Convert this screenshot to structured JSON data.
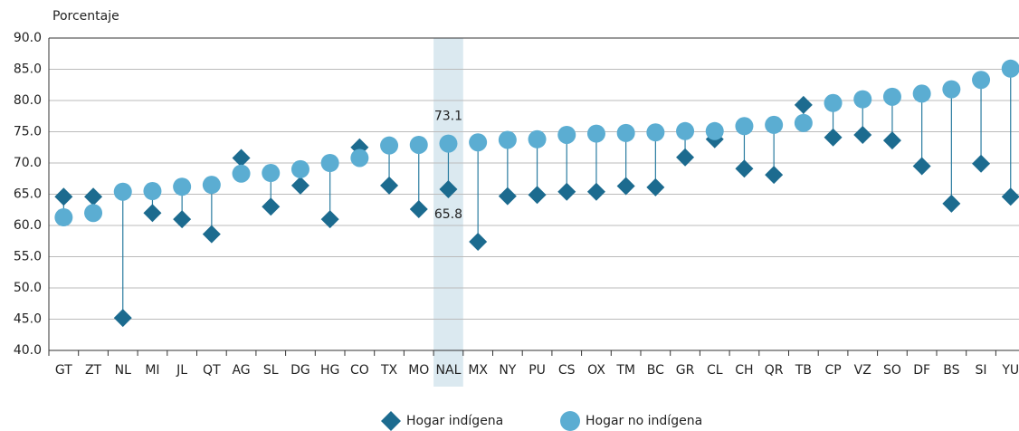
{
  "chart_data": {
    "type": "dumbbell",
    "y_label": "Porcentaje",
    "categories": [
      "GT",
      "ZT",
      "NL",
      "MI",
      "JL",
      "QT",
      "AG",
      "SL",
      "DG",
      "HG",
      "CO",
      "TX",
      "MO",
      "NAL",
      "MX",
      "NY",
      "PU",
      "CS",
      "OX",
      "TM",
      "BC",
      "GR",
      "CL",
      "CH",
      "QR",
      "TB",
      "CP",
      "VZ",
      "SO",
      "DF",
      "BS",
      "SI",
      "YU"
    ],
    "series": [
      {
        "name": "Hogar indígena",
        "color": "#1c6b8f",
        "marker": "diamond",
        "values": [
          64.6,
          64.6,
          45.2,
          62.0,
          61.0,
          58.6,
          70.8,
          63.0,
          66.4,
          61.0,
          72.5,
          66.4,
          62.6,
          65.8,
          57.4,
          64.7,
          64.9,
          65.4,
          65.4,
          66.3,
          66.1,
          70.9,
          73.8,
          69.1,
          68.1,
          79.3,
          74.1,
          74.5,
          73.6,
          69.5,
          63.5,
          69.9,
          64.6
        ]
      },
      {
        "name": "Hogar no indígena",
        "color": "#5badd2",
        "marker": "circle",
        "values": [
          61.3,
          62.0,
          65.4,
          65.5,
          66.2,
          66.5,
          68.3,
          68.4,
          69.0,
          70.0,
          70.8,
          72.8,
          72.9,
          73.1,
          73.3,
          73.7,
          73.8,
          74.5,
          74.7,
          74.8,
          74.9,
          75.1,
          75.1,
          75.9,
          76.1,
          76.4,
          79.6,
          80.2,
          80.6,
          81.1,
          81.8,
          83.3,
          85.1
        ]
      }
    ],
    "highlight": "NAL",
    "ylim": [
      40,
      90
    ],
    "yticks": [
      {
        "value": 40,
        "label": "40.0"
      },
      {
        "value": 45,
        "label": "45.0"
      },
      {
        "value": 50,
        "label": "50.0"
      },
      {
        "value": 55,
        "label": "55.0"
      },
      {
        "value": 60,
        "label": "60.0"
      },
      {
        "value": 65,
        "label": "65.0"
      },
      {
        "value": 70,
        "label": "70.0"
      },
      {
        "value": 75,
        "label": "75.0"
      },
      {
        "value": 80,
        "label": "80.0"
      },
      {
        "value": 85,
        "label": "85.0"
      },
      {
        "value": 90,
        "label": "90.0"
      }
    ],
    "grid": true
  }
}
